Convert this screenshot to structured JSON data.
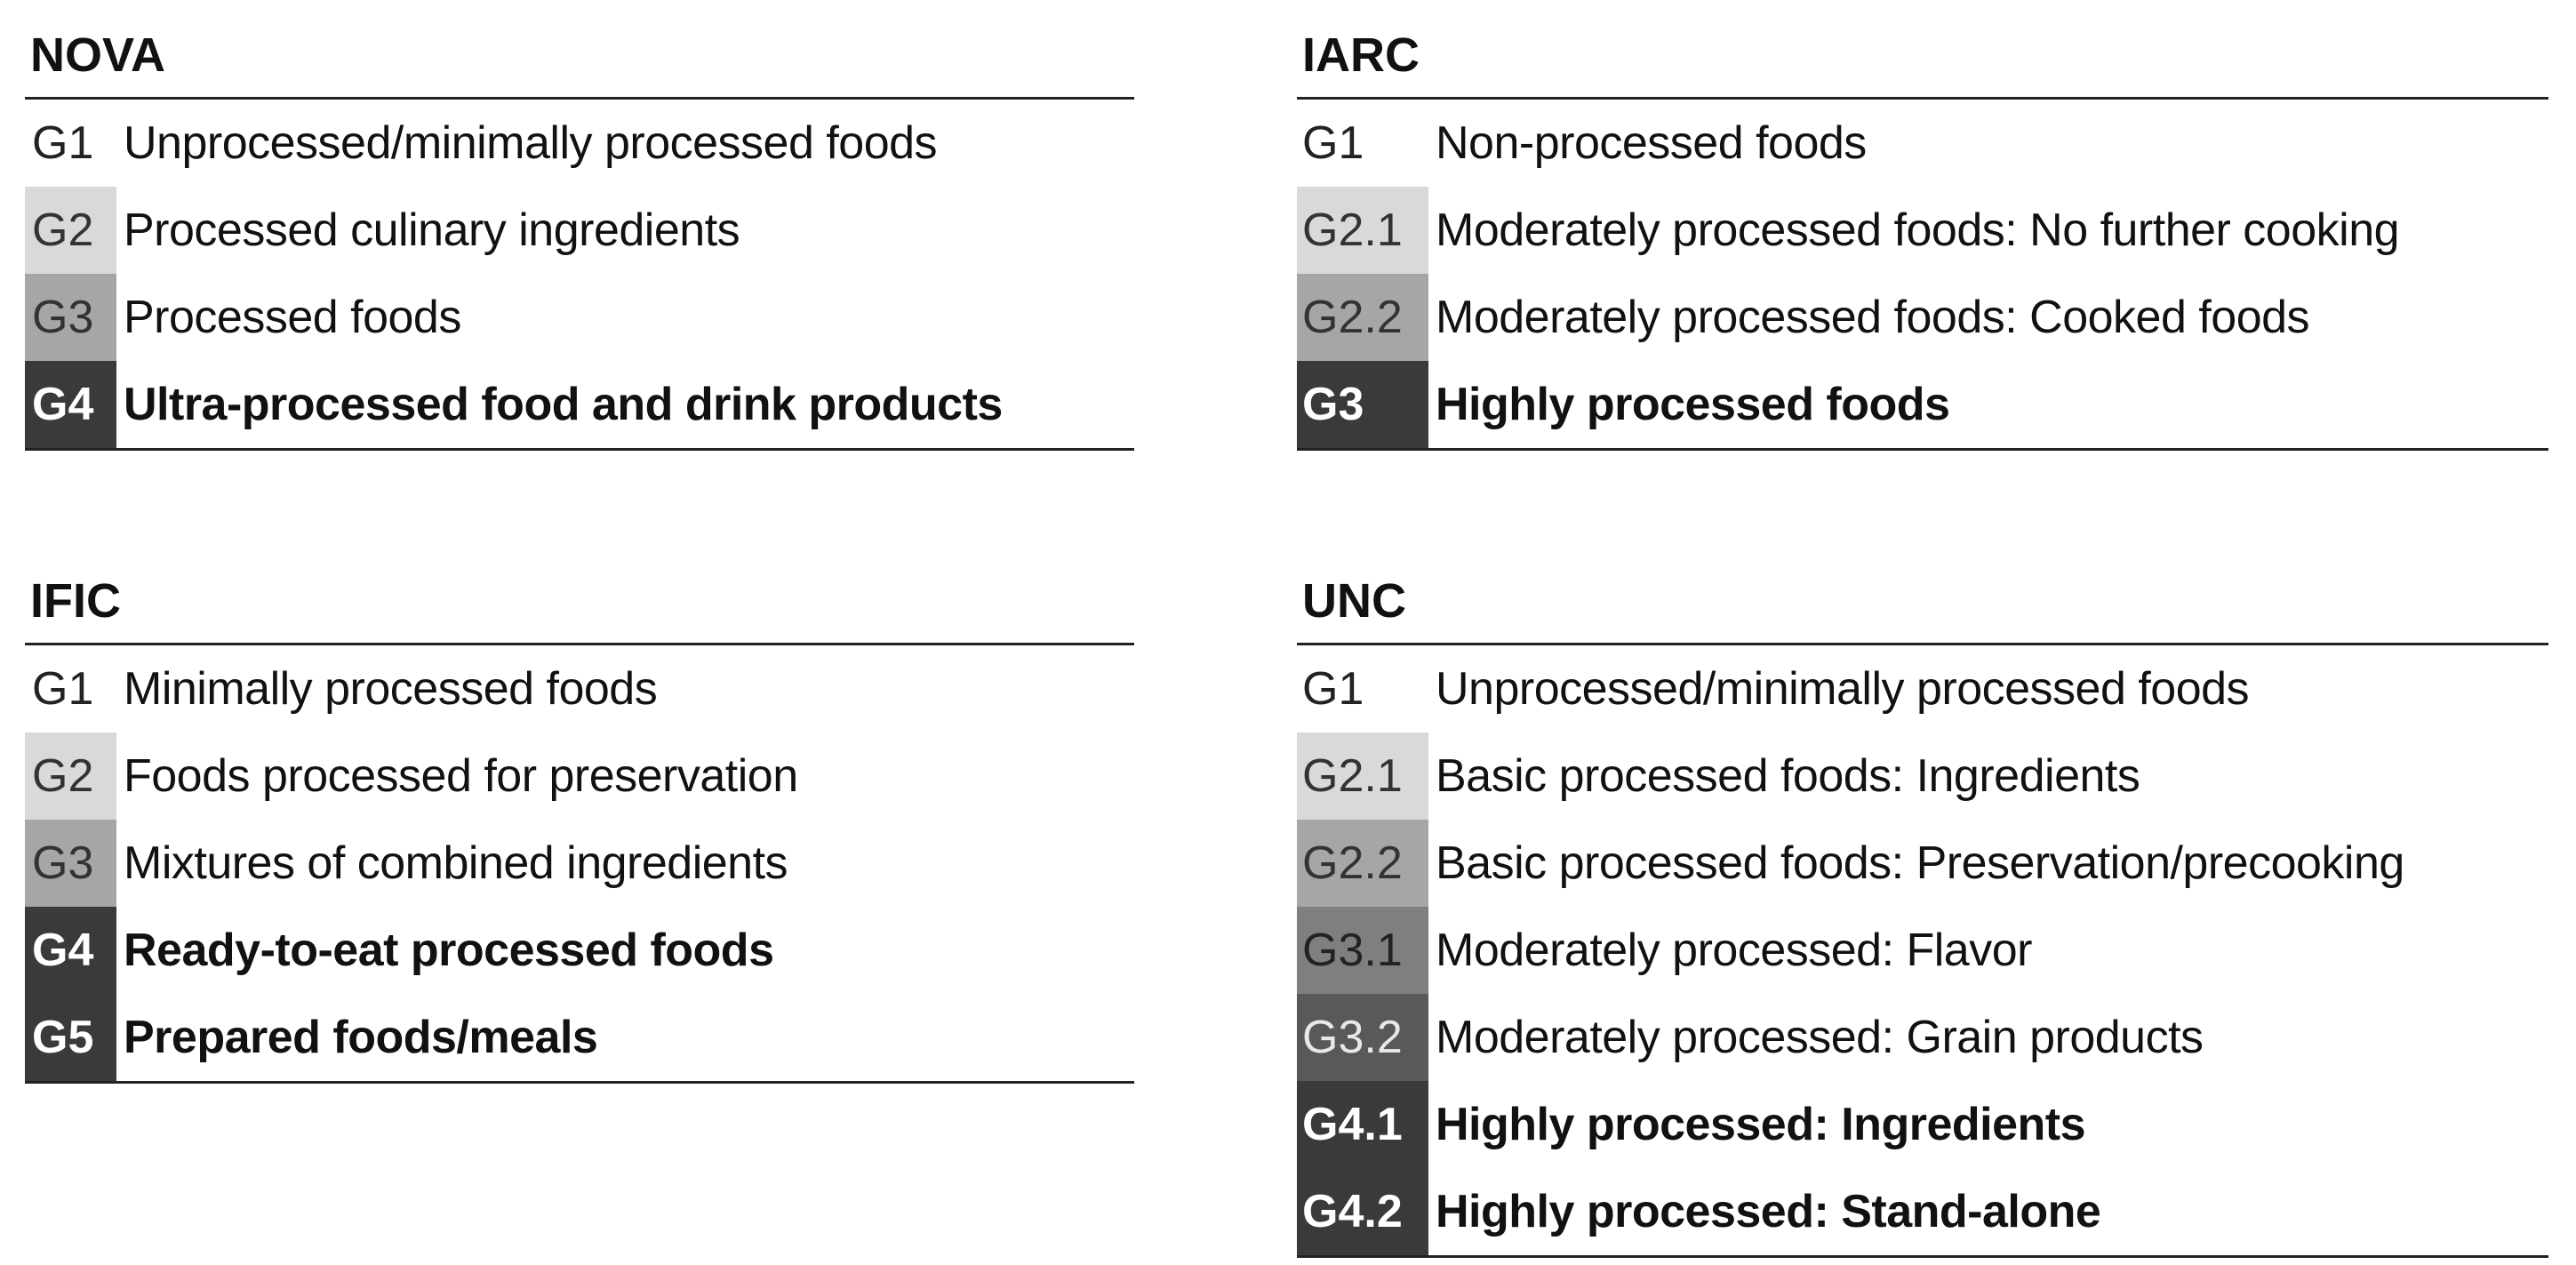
{
  "panels": [
    {
      "id": "panel-nova",
      "title": "NOVA",
      "rows": [
        {
          "code": "G1",
          "label": "Unprocessed/minimally processed foods",
          "shade": "#ffffff",
          "text_color": "#222222",
          "bold": false
        },
        {
          "code": "G2",
          "label": "Processed culinary ingredients",
          "shade": "#d9d9d9",
          "text_color": "#333333",
          "bold": false
        },
        {
          "code": "G3",
          "label": "Processed foods",
          "shade": "#a6a6a6",
          "text_color": "#333333",
          "bold": false
        },
        {
          "code": "G4",
          "label": "Ultra-processed food and drink products",
          "shade": "#3a3a3a",
          "text_color": "#ffffff",
          "bold": true
        }
      ]
    },
    {
      "id": "panel-iarc",
      "title": "IARC",
      "rows": [
        {
          "code": "G1",
          "label": "Non-processed foods",
          "shade": "#ffffff",
          "text_color": "#222222",
          "bold": false
        },
        {
          "code": "G2.1",
          "label": "Moderately processed foods: No further cooking",
          "shade": "#d9d9d9",
          "text_color": "#333333",
          "bold": false
        },
        {
          "code": "G2.2",
          "label": "Moderately processed foods: Cooked foods",
          "shade": "#a6a6a6",
          "text_color": "#333333",
          "bold": false
        },
        {
          "code": "G3",
          "label": "Highly processed foods",
          "shade": "#3a3a3a",
          "text_color": "#ffffff",
          "bold": true
        }
      ]
    },
    {
      "id": "panel-ific",
      "title": "IFIC",
      "rows": [
        {
          "code": "G1",
          "label": "Minimally processed foods",
          "shade": "#ffffff",
          "text_color": "#222222",
          "bold": false
        },
        {
          "code": "G2",
          "label": "Foods processed for preservation",
          "shade": "#d9d9d9",
          "text_color": "#333333",
          "bold": false
        },
        {
          "code": "G3",
          "label": "Mixtures of combined ingredients",
          "shade": "#a6a6a6",
          "text_color": "#333333",
          "bold": false
        },
        {
          "code": "G4",
          "label": "Ready-to-eat processed foods",
          "shade": "#3a3a3a",
          "text_color": "#ffffff",
          "bold": true
        },
        {
          "code": "G5",
          "label": "Prepared foods/meals",
          "shade": "#3a3a3a",
          "text_color": "#ffffff",
          "bold": true
        }
      ]
    },
    {
      "id": "panel-unc",
      "title": "UNC",
      "rows": [
        {
          "code": "G1",
          "label": "Unprocessed/minimally processed foods",
          "shade": "#ffffff",
          "text_color": "#222222",
          "bold": false
        },
        {
          "code": "G2.1",
          "label": "Basic processed foods: Ingredients",
          "shade": "#d9d9d9",
          "text_color": "#333333",
          "bold": false
        },
        {
          "code": "G2.2",
          "label": "Basic processed foods: Preservation/precooking",
          "shade": "#a6a6a6",
          "text_color": "#333333",
          "bold": false
        },
        {
          "code": "G3.1",
          "label": "Moderately processed: Flavor",
          "shade": "#7f7f7f",
          "text_color": "#222222",
          "bold": false
        },
        {
          "code": "G3.2",
          "label": "Moderately processed: Grain products",
          "shade": "#595959",
          "text_color": "#e8e8e8",
          "bold": false
        },
        {
          "code": "G4.1",
          "label": "Highly processed: Ingredients",
          "shade": "#3a3a3a",
          "text_color": "#ffffff",
          "bold": true
        },
        {
          "code": "G4.2",
          "label": "Highly processed: Stand-alone",
          "shade": "#3a3a3a",
          "text_color": "#ffffff",
          "bold": true
        }
      ]
    }
  ]
}
